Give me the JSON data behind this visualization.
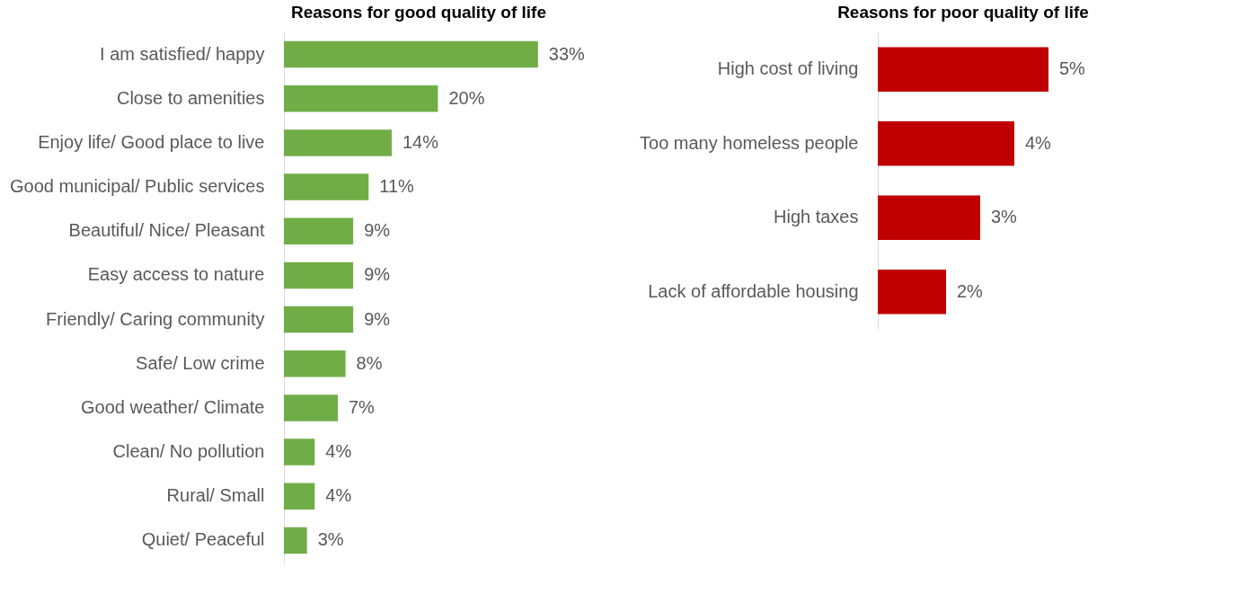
{
  "chart_data": [
    {
      "type": "bar",
      "orientation": "horizontal",
      "title": "Reasons for good quality of life",
      "categories": [
        "I am satisfied/ happy",
        "Close to amenities",
        "Enjoy life/ Good place to live",
        "Good municipal/ Public services",
        "Beautiful/ Nice/ Pleasant",
        "Easy access to nature",
        "Friendly/ Caring community",
        "Safe/ Low crime",
        "Good weather/ Climate",
        "Clean/ No pollution",
        "Rural/ Small",
        "Quiet/ Peaceful"
      ],
      "series": [
        {
          "color": "#70ad47",
          "values": [
            33,
            20,
            14,
            11,
            9,
            9,
            9,
            8,
            7,
            4,
            4,
            3
          ],
          "value_labels": [
            "33%",
            "20%",
            "14%",
            "11%",
            "9%",
            "9%",
            "9%",
            "8%",
            "7%",
            "4%",
            "4%",
            "3%"
          ]
        }
      ]
    },
    {
      "type": "bar",
      "orientation": "horizontal",
      "title": "Reasons for poor quality of life",
      "categories": [
        "High cost of living",
        "Too many homeless people",
        "High taxes",
        "Lack of affordable housing"
      ],
      "series": [
        {
          "color": "#c00000",
          "values": [
            5,
            4,
            3,
            2
          ],
          "value_labels": [
            "5%",
            "4%",
            "3%",
            "2%"
          ]
        }
      ]
    }
  ]
}
